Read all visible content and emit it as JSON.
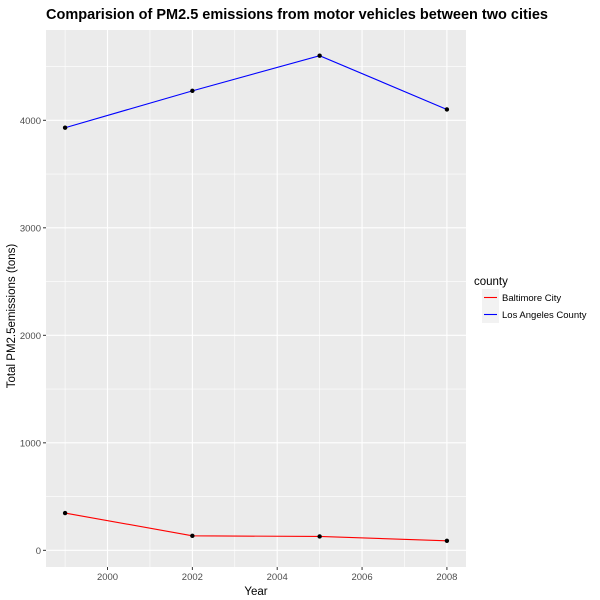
{
  "chart_data": {
    "type": "line",
    "title": "Comparision of PM2.5 emissions from motor vehicles between two cities",
    "xlabel": "Year",
    "ylabel": "Total PM2.5emissions (tons)",
    "x": [
      1999,
      2002,
      2005,
      2008
    ],
    "xlim": [
      1998.55,
      2008.45
    ],
    "ylim": [
      -155,
      4840
    ],
    "x_ticks": [
      2000,
      2002,
      2004,
      2006,
      2008
    ],
    "x_tick_labels": [
      "2000",
      "2002",
      "2004",
      "2006",
      "2008"
    ],
    "y_ticks": [
      0,
      1000,
      2000,
      3000,
      4000
    ],
    "y_tick_labels": [
      "0",
      "1000",
      "2000",
      "3000",
      "4000"
    ],
    "grid": true,
    "legend_position": "right",
    "legend_title": "county",
    "series": [
      {
        "name": "Baltimore City",
        "color": "#ff0000",
        "values": [
          347,
          135,
          129,
          89
        ]
      },
      {
        "name": "Los Angeles County",
        "color": "#0000ff",
        "values": [
          3931,
          4274,
          4601,
          4101
        ]
      }
    ],
    "point_color": "#000000",
    "panel_background": "#ebebeb",
    "grid_color": "#ffffff"
  }
}
